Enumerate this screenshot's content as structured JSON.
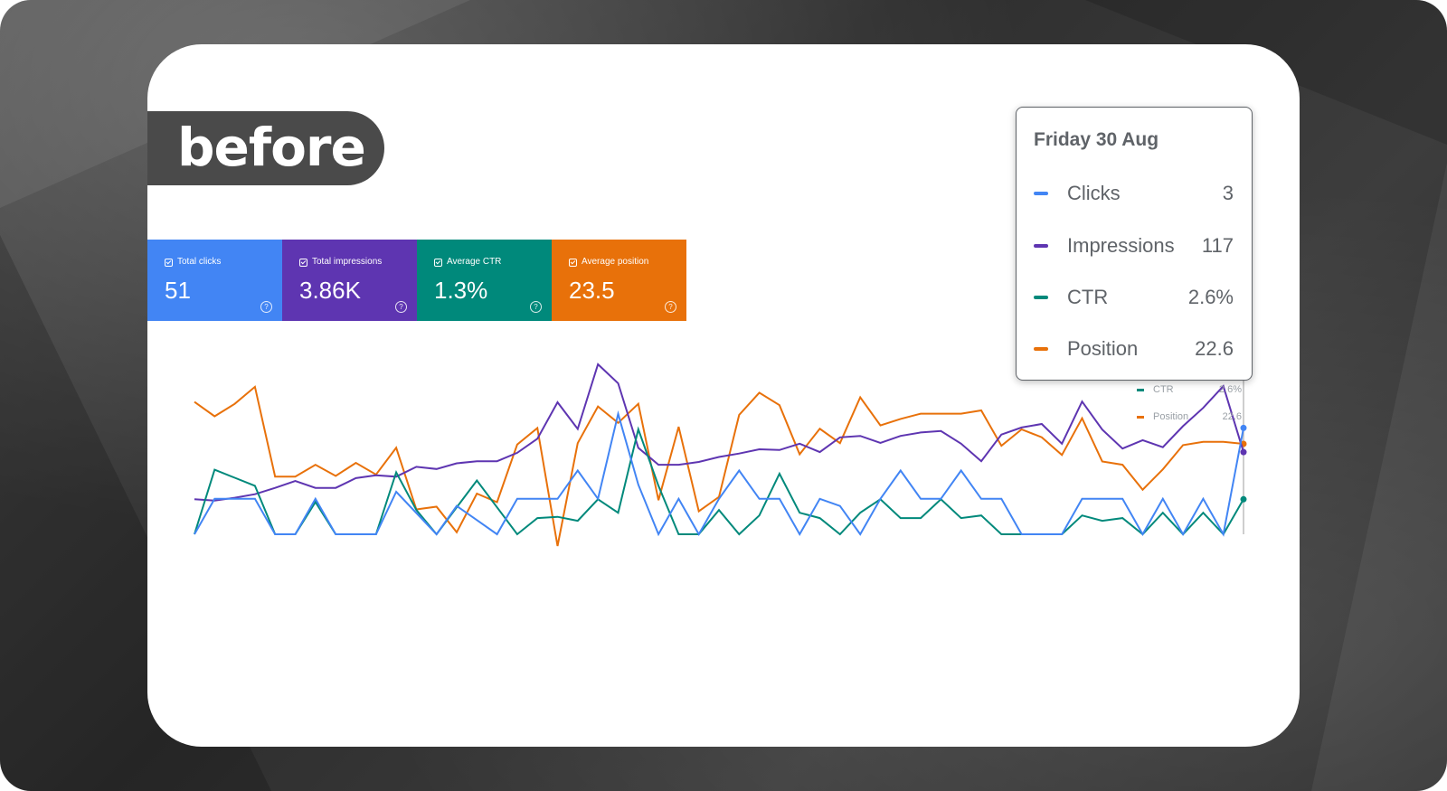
{
  "badge": {
    "label": "before"
  },
  "metrics": [
    {
      "key": "clicks",
      "label": "Total clicks",
      "value": "51",
      "color": "#4285f4"
    },
    {
      "key": "impressions",
      "label": "Total impressions",
      "value": "3.86K",
      "color": "#5e35b1"
    },
    {
      "key": "ctr",
      "label": "Average CTR",
      "value": "1.3%",
      "color": "#00897b"
    },
    {
      "key": "position",
      "label": "Average position",
      "value": "23.5",
      "color": "#e8710a"
    }
  ],
  "tooltip": {
    "title": "Friday 30 Aug",
    "rows": [
      {
        "name": "Clicks",
        "value": "3",
        "color": "#4285f4"
      },
      {
        "name": "Impressions",
        "value": "117",
        "color": "#5e35b1"
      },
      {
        "name": "CTR",
        "value": "2.6%",
        "color": "#00897b"
      },
      {
        "name": "Position",
        "value": "22.6",
        "color": "#e8710a"
      }
    ]
  },
  "ghost_tooltip": {
    "rows": [
      {
        "name": "CTR",
        "value": "2.6%",
        "color": "#00897b"
      },
      {
        "name": "Position",
        "value": "22.6",
        "color": "#e8710a"
      }
    ]
  },
  "chart_data": {
    "type": "line",
    "title": "",
    "xlabel": "",
    "ylabel": "",
    "grid": false,
    "axes_visible": false,
    "n_points": 53,
    "series": [
      {
        "name": "Clicks",
        "color": "#4285f4",
        "values": [
          0,
          1,
          1,
          1,
          0,
          0,
          1,
          0,
          0,
          0,
          1.2,
          0.6,
          0,
          0.8,
          0.4,
          0,
          1,
          1,
          1,
          1.8,
          1,
          3.4,
          1.4,
          0,
          1,
          0,
          1,
          1.8,
          1,
          1,
          0,
          1,
          0.8,
          0,
          1,
          1.8,
          1,
          1,
          1.8,
          1,
          1,
          0,
          0,
          0,
          1,
          1,
          1,
          0,
          1,
          0,
          1,
          0,
          3
        ]
      },
      {
        "name": "Impressions",
        "color": "#5e35b1",
        "values": [
          50,
          48,
          52,
          57,
          66,
          76,
          66,
          66,
          80,
          84,
          82,
          96,
          93,
          101,
          104,
          104,
          116,
          136,
          188,
          150,
          242,
          215,
          123,
          99,
          99,
          103,
          110,
          115,
          121,
          120,
          129,
          117,
          138,
          140,
          130,
          140,
          145,
          147,
          129,
          104,
          142,
          152,
          157,
          129,
          189,
          149,
          122,
          134,
          124,
          154,
          180,
          211,
          117
        ]
      },
      {
        "name": "CTR",
        "color": "#00897b",
        "values": [
          0,
          4.8,
          4.2,
          3.6,
          0,
          0,
          2.4,
          0,
          0,
          0,
          4.6,
          1.8,
          0,
          2,
          4,
          2,
          0,
          1.2,
          1.3,
          1,
          2.6,
          1.6,
          7.8,
          3.6,
          0,
          0,
          1.8,
          0,
          1.4,
          4.5,
          1.6,
          1.2,
          0,
          1.6,
          2.6,
          1.2,
          1.2,
          2.6,
          1.2,
          1.4,
          0,
          0,
          0,
          0,
          1.4,
          1,
          1.2,
          0,
          1.6,
          0,
          1.6,
          0,
          2.6
        ]
      },
      {
        "name": "Position",
        "color": "#e8710a",
        "values": [
          31.8,
          34,
          32.1,
          29.5,
          43.2,
          43.2,
          41.4,
          43.1,
          41.1,
          42.9,
          38.8,
          48.2,
          47.8,
          51.7,
          45.8,
          47.1,
          38.3,
          35.8,
          53.8,
          38.1,
          32.5,
          35,
          32.1,
          46.8,
          35.6,
          48.5,
          46.3,
          33.8,
          30.4,
          32.3,
          39.8,
          35.9,
          38.1,
          31.1,
          35.4,
          34.4,
          33.6,
          33.6,
          33.6,
          33.1,
          38.5,
          36,
          37.2,
          39.9,
          34.3,
          40.9,
          41.4,
          45.2,
          42.1,
          38.4,
          37.9,
          37.9,
          38.2
        ]
      }
    ]
  }
}
